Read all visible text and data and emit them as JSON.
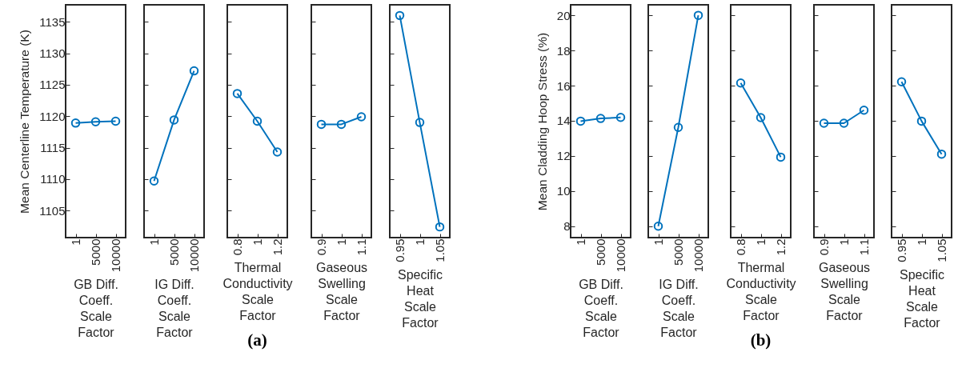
{
  "chart_data": [
    {
      "type": "line",
      "categories": [
        "1",
        "5000",
        "10000"
      ],
      "values": [
        1118.9,
        1119.1,
        1119.2
      ],
      "color": "#0072bd",
      "marker": "circle",
      "xlabel": "GB Diff.\nCoeff.\nScale\nFactor",
      "ylabel": "Mean Centerline Temperature (K)",
      "ylim": [
        1100.7,
        1137.7
      ],
      "yticks": [
        1105,
        1110,
        1115,
        1120,
        1125,
        1130,
        1135
      ]
    },
    {
      "type": "line",
      "categories": [
        "1",
        "5000",
        "10000"
      ],
      "values": [
        1109.7,
        1119.4,
        1127.2
      ],
      "color": "#0072bd",
      "marker": "circle",
      "xlabel": "IG Diff.\nCoeff.\nScale\nFactor",
      "ylim": [
        1100.7,
        1137.7
      ],
      "yticks": [
        1105,
        1110,
        1115,
        1120,
        1125,
        1130,
        1135
      ],
      "tick_labels": "x"
    },
    {
      "type": "line",
      "categories": [
        "0.8",
        "1",
        "1.2"
      ],
      "values": [
        1123.6,
        1119.2,
        1114.3
      ],
      "color": "#0072bd",
      "marker": "circle",
      "xlabel": "Thermal\nConductivity\nScale\nFactor",
      "ylim": [
        1100.7,
        1137.7
      ],
      "yticks": [
        1105,
        1110,
        1115,
        1120,
        1125,
        1130,
        1135
      ],
      "tick_labels": "x",
      "annotations": [
        "(a)"
      ]
    },
    {
      "type": "line",
      "categories": [
        "0.9",
        "1",
        "1.1"
      ],
      "values": [
        1118.7,
        1118.7,
        1119.9
      ],
      "color": "#0072bd",
      "marker": "circle",
      "xlabel": "Gaseous\nSwelling\nScale\nFactor",
      "ylim": [
        1100.7,
        1137.7
      ],
      "yticks": [
        1105,
        1110,
        1115,
        1120,
        1125,
        1130,
        1135
      ],
      "tick_labels": "x"
    },
    {
      "type": "line",
      "categories": [
        "0.95",
        "1",
        "1.05"
      ],
      "values": [
        1136.0,
        1119.0,
        1102.4
      ],
      "color": "#0072bd",
      "marker": "circle",
      "xlabel": "Specific\nHeat\nScale\nFactor",
      "ylim": [
        1100.7,
        1137.7
      ],
      "yticks": [
        1105,
        1110,
        1115,
        1120,
        1125,
        1130,
        1135
      ],
      "tick_labels": "x"
    },
    {
      "type": "line",
      "categories": [
        "1",
        "5000",
        "10000"
      ],
      "values": [
        13.98,
        14.13,
        14.19
      ],
      "color": "#0072bd",
      "marker": "circle",
      "xlabel": "GB Diff.\nCoeff.\nScale\nFactor",
      "ylabel": "Mean Cladding Hoop Stress (%)",
      "ylim": [
        7.35,
        20.6
      ],
      "yticks": [
        8,
        10,
        12,
        14,
        16,
        18,
        20
      ]
    },
    {
      "type": "line",
      "categories": [
        "1",
        "5000",
        "10000"
      ],
      "values": [
        8.0,
        13.62,
        20.0
      ],
      "color": "#0072bd",
      "marker": "circle",
      "xlabel": "IG Diff.\nCoeff.\nScale\nFactor",
      "ylim": [
        7.35,
        20.6
      ],
      "yticks": [
        8,
        10,
        12,
        14,
        16,
        18,
        20
      ],
      "tick_labels": "x"
    },
    {
      "type": "line",
      "categories": [
        "0.8",
        "1",
        "1.2"
      ],
      "values": [
        16.15,
        14.18,
        11.93
      ],
      "color": "#0072bd",
      "marker": "circle",
      "xlabel": "Thermal\nConductivity\nScale\nFactor",
      "ylim": [
        7.35,
        20.6
      ],
      "yticks": [
        8,
        10,
        12,
        14,
        16,
        18,
        20
      ],
      "tick_labels": "x",
      "annotations": [
        "(b)"
      ]
    },
    {
      "type": "line",
      "categories": [
        "0.9",
        "1",
        "1.1"
      ],
      "values": [
        13.86,
        13.86,
        14.6
      ],
      "color": "#0072bd",
      "marker": "circle",
      "xlabel": "Gaseous\nSwelling\nScale\nFactor",
      "ylim": [
        7.35,
        20.6
      ],
      "yticks": [
        8,
        10,
        12,
        14,
        16,
        18,
        20
      ],
      "tick_labels": "x"
    },
    {
      "type": "line",
      "categories": [
        "0.95",
        "1",
        "1.05"
      ],
      "values": [
        16.22,
        13.98,
        12.1
      ],
      "color": "#0072bd",
      "marker": "circle",
      "xlabel": "Specific\nHeat\nScale\nFactor",
      "ylim": [
        7.35,
        20.6
      ],
      "yticks": [
        8,
        10,
        12,
        14,
        16,
        18,
        20
      ],
      "tick_labels": "x"
    }
  ]
}
